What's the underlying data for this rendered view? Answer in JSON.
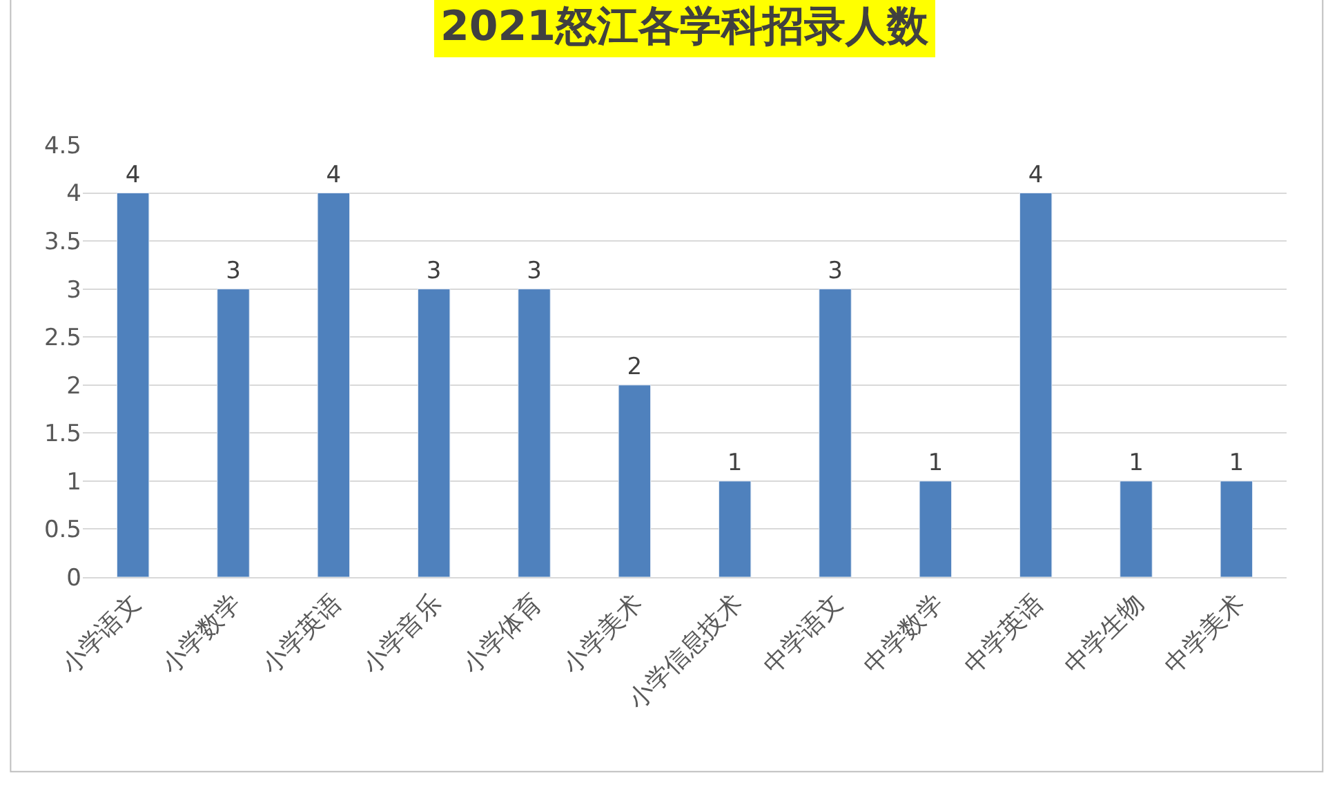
{
  "chart_data": {
    "type": "bar",
    "title": "2021怒江各学科招录人数",
    "categories": [
      "小学语文",
      "小学数学",
      "小学英语",
      "小学音乐",
      "小学体育",
      "小学美术",
      "小学信息技术",
      "中学语文",
      "中学数学",
      "中学英语",
      "中学生物",
      "中学美术"
    ],
    "values": [
      4,
      3,
      4,
      3,
      3,
      2,
      1,
      3,
      1,
      4,
      1,
      1
    ],
    "color": "#4f81bd",
    "ylim": [
      0,
      4.5
    ],
    "yticks": [
      0,
      0.5,
      1,
      1.5,
      2,
      2.5,
      3,
      3.5,
      4,
      4.5
    ],
    "grid": "y",
    "data_labels": true,
    "legend": false
  }
}
